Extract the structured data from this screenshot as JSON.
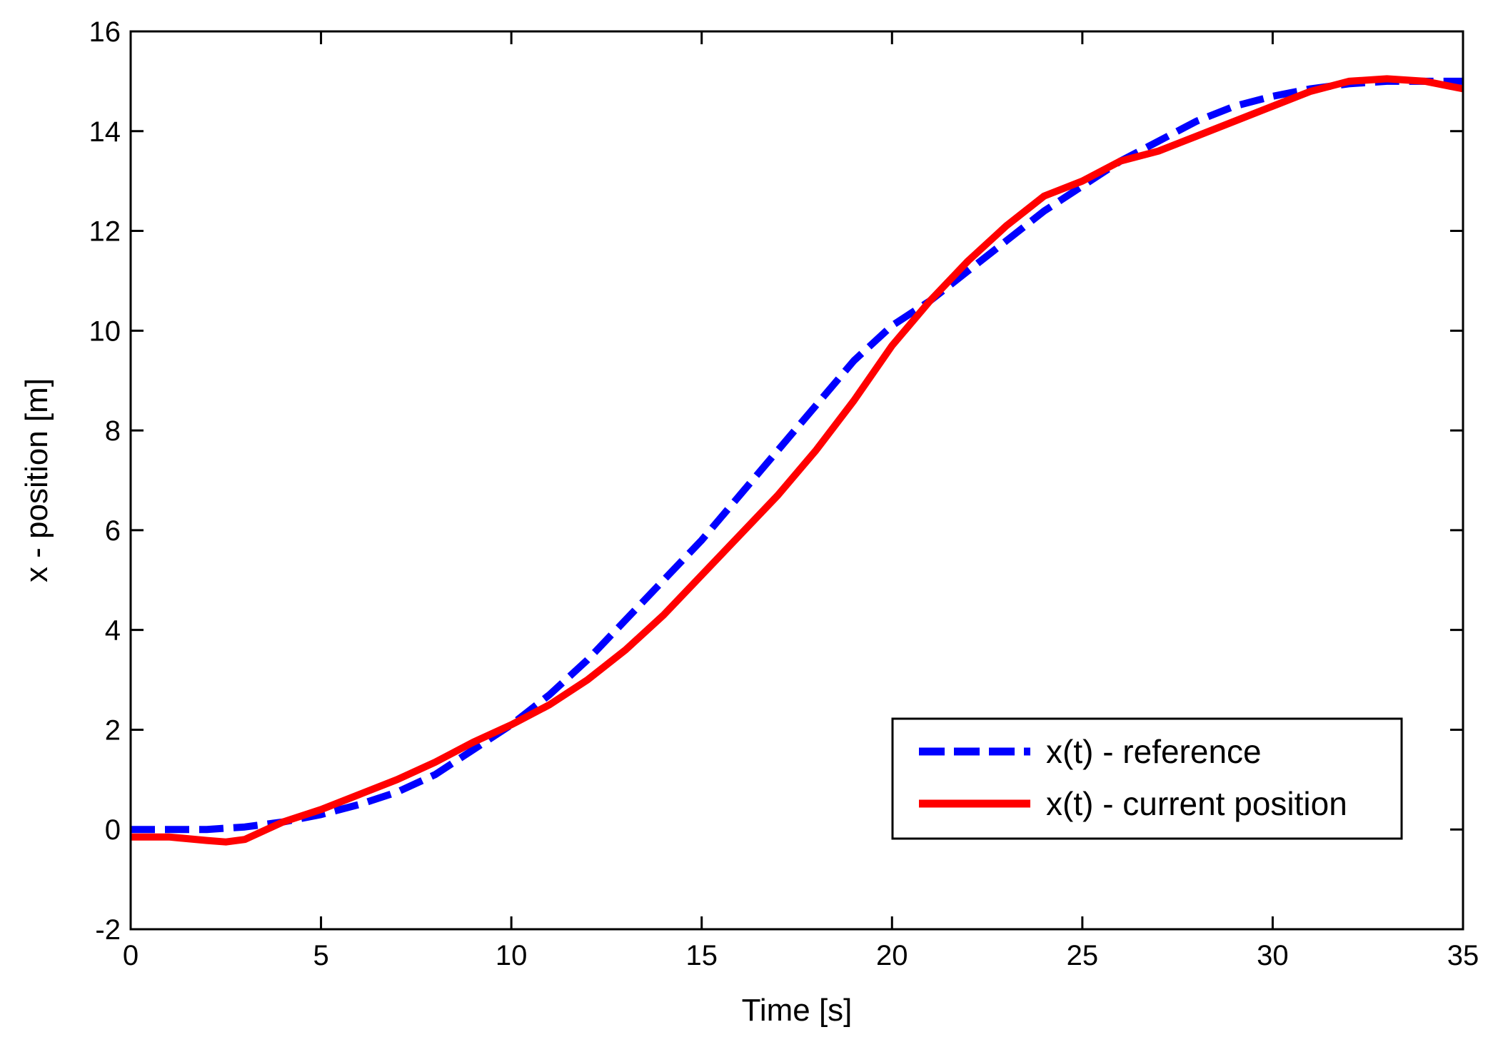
{
  "chart_data": {
    "type": "line",
    "title": "",
    "xlabel": "Time [s]",
    "ylabel": "x - position [m]",
    "xlim": [
      0,
      35
    ],
    "ylim": [
      -2,
      16
    ],
    "xticks": [
      0,
      5,
      10,
      15,
      20,
      25,
      30,
      35
    ],
    "yticks": [
      -2,
      0,
      2,
      4,
      6,
      8,
      10,
      12,
      14,
      16
    ],
    "grid": false,
    "legend_position": "bottom-right",
    "series": [
      {
        "name": "x(t) - reference",
        "color": "#0000ff",
        "style": "dashed",
        "x": [
          0,
          1,
          2,
          3,
          4,
          5,
          6,
          7,
          8,
          9,
          10,
          11,
          12,
          13,
          14,
          15,
          16,
          17,
          18,
          19,
          20,
          21,
          22,
          23,
          24,
          25,
          26,
          27,
          28,
          29,
          30,
          31,
          32,
          33,
          34,
          35
        ],
        "y": [
          0,
          0,
          0,
          0.05,
          0.15,
          0.3,
          0.5,
          0.75,
          1.1,
          1.6,
          2.1,
          2.7,
          3.4,
          4.2,
          5.0,
          5.8,
          6.7,
          7.6,
          8.5,
          9.4,
          10.1,
          10.6,
          11.2,
          11.8,
          12.4,
          12.9,
          13.4,
          13.8,
          14.2,
          14.5,
          14.7,
          14.85,
          14.95,
          15.0,
          15.0,
          15.0
        ]
      },
      {
        "name": "x(t) - current position",
        "color": "#ff0000",
        "style": "solid",
        "x": [
          0,
          1,
          2,
          2.5,
          3,
          4,
          5,
          6,
          7,
          8,
          9,
          10,
          11,
          12,
          13,
          14,
          15,
          16,
          17,
          18,
          19,
          20,
          21,
          22,
          23,
          24,
          25,
          26,
          27,
          28,
          29,
          30,
          31,
          32,
          33,
          34,
          35
        ],
        "y": [
          -0.15,
          -0.15,
          -0.22,
          -0.25,
          -0.2,
          0.15,
          0.4,
          0.7,
          1.0,
          1.35,
          1.75,
          2.1,
          2.5,
          3.0,
          3.6,
          4.3,
          5.1,
          5.9,
          6.7,
          7.6,
          8.6,
          9.7,
          10.6,
          11.4,
          12.1,
          12.7,
          13.0,
          13.4,
          13.6,
          13.9,
          14.2,
          14.5,
          14.8,
          15.0,
          15.05,
          15.0,
          14.85
        ]
      }
    ]
  }
}
